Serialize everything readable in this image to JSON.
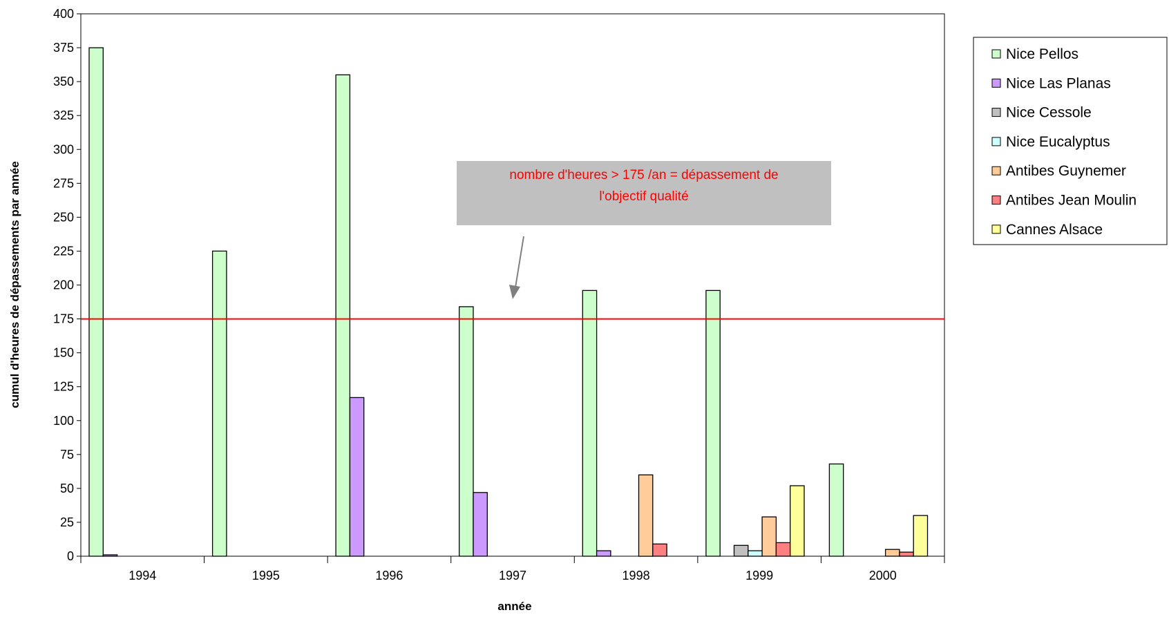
{
  "chart_data": {
    "type": "bar",
    "title": "",
    "xlabel": "année",
    "ylabel": "cumul d'heures de dépassements par année",
    "ylim": [
      0,
      400
    ],
    "yticks": [
      0,
      25,
      50,
      75,
      100,
      125,
      150,
      175,
      200,
      225,
      250,
      275,
      300,
      325,
      350,
      375,
      400
    ],
    "grid": false,
    "legend_position": "right",
    "categories": [
      "1994",
      "1995",
      "1996",
      "1997",
      "1998",
      "1999",
      "2000"
    ],
    "series": [
      {
        "name": "Nice Pellos",
        "color": "#ccffcc",
        "values": [
          375,
          225,
          355,
          184,
          196,
          196,
          68
        ]
      },
      {
        "name": "Nice Las Planas",
        "color": "#cc99ff",
        "values": [
          1,
          0,
          117,
          47,
          4,
          0,
          0
        ]
      },
      {
        "name": "Nice Cessole",
        "color": "#c0c0c0",
        "values": [
          0,
          0,
          0,
          0,
          0,
          8,
          0
        ]
      },
      {
        "name": "Nice Eucalyptus",
        "color": "#ccffff",
        "values": [
          0,
          0,
          0,
          0,
          0,
          4,
          0
        ]
      },
      {
        "name": "Antibes Guynemer",
        "color": "#ffcc99",
        "values": [
          0,
          0,
          0,
          0,
          60,
          29,
          5
        ]
      },
      {
        "name": "Antibes Jean Moulin",
        "color": "#ff8080",
        "values": [
          0,
          0,
          0,
          0,
          9,
          10,
          3
        ]
      },
      {
        "name": "Cannes Alsace",
        "color": "#ffff99",
        "values": [
          0,
          0,
          0,
          0,
          0,
          52,
          30
        ]
      }
    ],
    "reference_line": {
      "value": 175,
      "color": "#ff0000"
    },
    "annotation": {
      "lines": [
        "nombre d'heures > 175 /an = dépassement de",
        "l'objectif qualité"
      ],
      "box_color": "#c0c0c0",
      "text_color": "#ff0000",
      "arrow_color": "#808080"
    }
  }
}
